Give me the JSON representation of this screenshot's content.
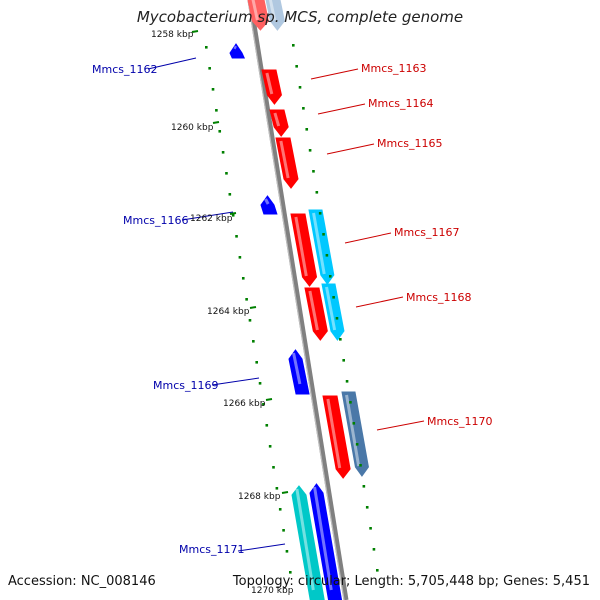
{
  "title": "Mycobacterium sp. MCS, complete genome",
  "footer": {
    "accession": "Accession: NC_008146",
    "topology": "Topology: circular; Length: 5,705,448 bp; Genes: 5,451"
  },
  "colors": {
    "backbone": "#808080",
    "forward_gene": "#ff0000",
    "reverse_gene": "#0000ff",
    "gc_dots": "#008000",
    "label_red": "#cc0000",
    "label_blue": "#0000aa",
    "light_blue": "#00c8ff",
    "steel_blue": "#4a78a8",
    "teal": "#00c8c8"
  },
  "ticks": [
    {
      "label": "1258 kbp"
    },
    {
      "label": "1260 kbp"
    },
    {
      "label": "1262 kbp"
    },
    {
      "label": "1264 kbp"
    },
    {
      "label": "1266 kbp"
    },
    {
      "label": "1268 kbp"
    },
    {
      "label": "1270 kbp"
    }
  ],
  "gene_labels": [
    {
      "name": "Mmcs_1162",
      "strand": "reverse"
    },
    {
      "name": "Mmcs_1163",
      "strand": "forward"
    },
    {
      "name": "Mmcs_1164",
      "strand": "forward"
    },
    {
      "name": "Mmcs_1165",
      "strand": "forward"
    },
    {
      "name": "Mmcs_1166",
      "strand": "reverse"
    },
    {
      "name": "Mmcs_1167",
      "strand": "forward"
    },
    {
      "name": "Mmcs_1168",
      "strand": "forward"
    },
    {
      "name": "Mmcs_1169",
      "strand": "reverse"
    },
    {
      "name": "Mmcs_1170",
      "strand": "forward"
    },
    {
      "name": "Mmcs_1171",
      "strand": "reverse"
    }
  ]
}
